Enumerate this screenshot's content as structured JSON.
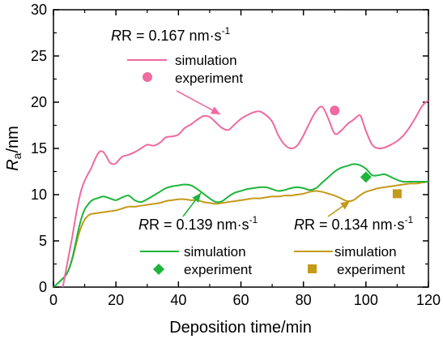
{
  "chart_data": {
    "type": "line",
    "xlabel": "Deposition time/min",
    "ylabel_main": "R",
    "ylabel_sub": "a",
    "ylabel_unit": "/nm",
    "xlim": [
      0,
      120
    ],
    "ylim": [
      0,
      30
    ],
    "xticks": [
      0,
      20,
      40,
      60,
      80,
      100,
      120
    ],
    "yticks": [
      0,
      5,
      10,
      15,
      20,
      25,
      30
    ],
    "grid": false,
    "series": [
      {
        "key": "pink",
        "color": "#ee6aa0",
        "rate_text": "R = 0.167 nm·s",
        "rate_sup": "-1",
        "sim_label": "simulation",
        "exp_label": "experiment",
        "marker": "circle",
        "experiment": [
          {
            "x": 90,
            "y": 19.1
          }
        ],
        "simulation": [
          [
            3.0,
            0.0
          ],
          [
            4.0,
            1.8
          ],
          [
            5.0,
            3.6
          ],
          [
            6.0,
            5.4
          ],
          [
            7.0,
            7.4
          ],
          [
            8.0,
            9.2
          ],
          [
            9.0,
            10.6
          ],
          [
            10.0,
            11.5
          ],
          [
            11.0,
            12.2
          ],
          [
            12.0,
            12.8
          ],
          [
            13.0,
            13.6
          ],
          [
            14.0,
            14.3
          ],
          [
            15.0,
            14.7
          ],
          [
            16.0,
            14.6
          ],
          [
            17.0,
            14.1
          ],
          [
            18.0,
            13.5
          ],
          [
            19.0,
            13.3
          ],
          [
            20.0,
            13.4
          ],
          [
            22.0,
            14.1
          ],
          [
            24.0,
            14.3
          ],
          [
            26.0,
            14.6
          ],
          [
            28.0,
            15.0
          ],
          [
            30.0,
            15.4
          ],
          [
            32.0,
            15.3
          ],
          [
            34.0,
            15.6
          ],
          [
            36.0,
            16.2
          ],
          [
            38.0,
            16.3
          ],
          [
            40.0,
            16.5
          ],
          [
            42.0,
            17.2
          ],
          [
            44.0,
            17.6
          ],
          [
            46.0,
            18.1
          ],
          [
            48.0,
            18.5
          ],
          [
            50.0,
            18.4
          ],
          [
            52.0,
            17.8
          ],
          [
            54.0,
            17.2
          ],
          [
            56.0,
            17.0
          ],
          [
            58.0,
            17.6
          ],
          [
            60.0,
            18.2
          ],
          [
            62.0,
            18.6
          ],
          [
            64.0,
            18.9
          ],
          [
            66.0,
            19.0
          ],
          [
            68.0,
            18.6
          ],
          [
            70.0,
            17.9
          ],
          [
            72.0,
            16.4
          ],
          [
            74.0,
            15.4
          ],
          [
            76.0,
            15.0
          ],
          [
            78.0,
            15.3
          ],
          [
            80.0,
            16.4
          ],
          [
            82.0,
            17.8
          ],
          [
            84.0,
            19.0
          ],
          [
            86.0,
            19.5
          ],
          [
            88.0,
            18.2
          ],
          [
            90.0,
            16.6
          ],
          [
            92.0,
            16.9
          ],
          [
            94.0,
            17.6
          ],
          [
            96.0,
            18.1
          ],
          [
            98.0,
            18.6
          ],
          [
            99.0,
            17.9
          ],
          [
            100.0,
            16.9
          ],
          [
            102.0,
            15.4
          ],
          [
            104.0,
            15.0
          ],
          [
            106.0,
            15.1
          ],
          [
            108.0,
            15.4
          ],
          [
            110.0,
            15.8
          ],
          [
            112.0,
            16.4
          ],
          [
            114.0,
            17.3
          ],
          [
            116.0,
            18.4
          ],
          [
            118.0,
            19.6
          ],
          [
            120.0,
            20.2
          ]
        ]
      },
      {
        "key": "green",
        "color": "#1db53b",
        "rate_text": "R = 0.139 nm·s",
        "rate_sup": "-1",
        "sim_label": "simulation",
        "exp_label": "experiment",
        "marker": "diamond",
        "experiment": [
          {
            "x": 100,
            "y": 11.9
          }
        ],
        "simulation": [
          [
            0.0,
            0.0
          ],
          [
            2.0,
            0.6
          ],
          [
            4.0,
            1.3
          ],
          [
            5.0,
            2.0
          ],
          [
            6.0,
            3.1
          ],
          [
            7.0,
            4.6
          ],
          [
            8.0,
            6.2
          ],
          [
            9.0,
            7.5
          ],
          [
            10.0,
            8.4
          ],
          [
            11.0,
            8.9
          ],
          [
            12.0,
            9.3
          ],
          [
            13.0,
            9.5
          ],
          [
            14.0,
            9.6
          ],
          [
            16.0,
            9.8
          ],
          [
            18.0,
            9.6
          ],
          [
            20.0,
            9.4
          ],
          [
            22.0,
            9.7
          ],
          [
            24.0,
            9.9
          ],
          [
            26.0,
            9.4
          ],
          [
            28.0,
            9.2
          ],
          [
            30.0,
            9.5
          ],
          [
            32.0,
            9.9
          ],
          [
            34.0,
            10.3
          ],
          [
            36.0,
            10.7
          ],
          [
            38.0,
            10.9
          ],
          [
            40.0,
            11.0
          ],
          [
            42.0,
            11.1
          ],
          [
            44.0,
            11.0
          ],
          [
            46.0,
            10.6
          ],
          [
            48.0,
            10.1
          ],
          [
            50.0,
            9.6
          ],
          [
            52.0,
            9.2
          ],
          [
            54.0,
            9.3
          ],
          [
            56.0,
            9.8
          ],
          [
            58.0,
            10.2
          ],
          [
            60.0,
            10.4
          ],
          [
            62.0,
            10.6
          ],
          [
            64.0,
            10.7
          ],
          [
            66.0,
            10.8
          ],
          [
            68.0,
            10.8
          ],
          [
            70.0,
            10.6
          ],
          [
            72.0,
            10.4
          ],
          [
            74.0,
            10.5
          ],
          [
            76.0,
            10.7
          ],
          [
            78.0,
            10.8
          ],
          [
            80.0,
            10.7
          ],
          [
            82.0,
            10.5
          ],
          [
            84.0,
            10.7
          ],
          [
            86.0,
            11.3
          ],
          [
            88.0,
            11.9
          ],
          [
            90.0,
            12.5
          ],
          [
            92.0,
            12.9
          ],
          [
            94.0,
            13.1
          ],
          [
            96.0,
            13.3
          ],
          [
            98.0,
            13.2
          ],
          [
            100.0,
            12.8
          ],
          [
            102.0,
            12.1
          ],
          [
            104.0,
            12.1
          ],
          [
            106.0,
            12.2
          ],
          [
            108.0,
            11.9
          ],
          [
            110.0,
            11.6
          ],
          [
            112.0,
            11.4
          ],
          [
            114.0,
            11.4
          ],
          [
            116.0,
            11.4
          ],
          [
            118.0,
            11.4
          ],
          [
            120.0,
            11.4
          ]
        ]
      },
      {
        "key": "gold",
        "color": "#c49a1a",
        "rate_text": "R = 0.134 nm·s",
        "rate_sup": "-1",
        "sim_label": "simulation",
        "exp_label": "experiment",
        "marker": "square",
        "experiment": [
          {
            "x": 110,
            "y": 10.1
          }
        ],
        "simulation": [
          [
            0.0,
            0.0
          ],
          [
            2.0,
            0.6
          ],
          [
            4.0,
            1.3
          ],
          [
            5.0,
            2.0
          ],
          [
            6.0,
            3.0
          ],
          [
            7.0,
            4.3
          ],
          [
            8.0,
            5.6
          ],
          [
            9.0,
            6.6
          ],
          [
            10.0,
            7.3
          ],
          [
            11.0,
            7.7
          ],
          [
            12.0,
            7.9
          ],
          [
            14.0,
            8.0
          ],
          [
            16.0,
            8.1
          ],
          [
            18.0,
            8.2
          ],
          [
            20.0,
            8.3
          ],
          [
            22.0,
            8.5
          ],
          [
            24.0,
            8.7
          ],
          [
            26.0,
            8.7
          ],
          [
            28.0,
            8.8
          ],
          [
            30.0,
            8.9
          ],
          [
            32.0,
            9.0
          ],
          [
            34.0,
            9.1
          ],
          [
            36.0,
            9.3
          ],
          [
            38.0,
            9.4
          ],
          [
            40.0,
            9.5
          ],
          [
            42.0,
            9.5
          ],
          [
            44.0,
            9.4
          ],
          [
            46.0,
            9.4
          ],
          [
            48.0,
            9.2
          ],
          [
            50.0,
            9.1
          ],
          [
            52.0,
            9.0
          ],
          [
            54.0,
            9.1
          ],
          [
            56.0,
            9.2
          ],
          [
            58.0,
            9.3
          ],
          [
            60.0,
            9.4
          ],
          [
            62.0,
            9.5
          ],
          [
            64.0,
            9.6
          ],
          [
            66.0,
            9.6
          ],
          [
            68.0,
            9.7
          ],
          [
            70.0,
            9.8
          ],
          [
            72.0,
            9.8
          ],
          [
            74.0,
            9.9
          ],
          [
            76.0,
            9.9
          ],
          [
            78.0,
            10.0
          ],
          [
            80.0,
            10.1
          ],
          [
            82.0,
            10.3
          ],
          [
            84.0,
            10.4
          ],
          [
            86.0,
            10.3
          ],
          [
            88.0,
            10.1
          ],
          [
            90.0,
            9.9
          ],
          [
            92.0,
            9.6
          ],
          [
            94.0,
            9.3
          ],
          [
            96.0,
            9.4
          ],
          [
            98.0,
            9.9
          ],
          [
            100.0,
            10.3
          ],
          [
            102.0,
            10.5
          ],
          [
            104.0,
            10.7
          ],
          [
            106.0,
            10.8
          ],
          [
            108.0,
            10.9
          ],
          [
            110.0,
            11.0
          ],
          [
            112.0,
            11.1
          ],
          [
            114.0,
            11.2
          ],
          [
            116.0,
            11.2
          ],
          [
            118.0,
            11.3
          ],
          [
            120.0,
            11.4
          ]
        ]
      }
    ]
  }
}
